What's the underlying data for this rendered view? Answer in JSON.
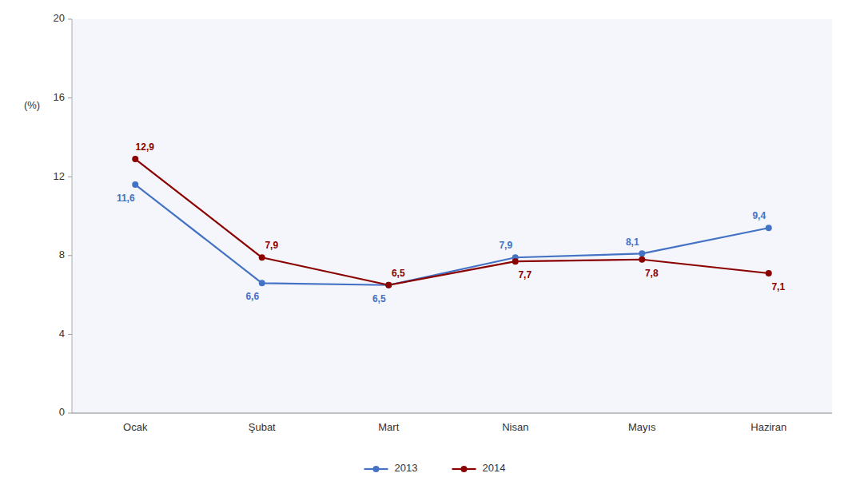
{
  "chart_data": {
    "type": "line",
    "y_label": "(%)",
    "categories": [
      "Ocak",
      "Şubat",
      "Mart",
      "Nisan",
      "Mayıs",
      "Haziran"
    ],
    "series": [
      {
        "name": "2013",
        "color": "#4472C4",
        "values": [
          11.6,
          6.6,
          6.5,
          7.9,
          8.1,
          9.4
        ],
        "value_labels": [
          "11,6",
          "6,6",
          "6,5",
          "7,9",
          "8,1",
          "9,4"
        ]
      },
      {
        "name": "2014",
        "color": "#8B0000",
        "values": [
          12.9,
          7.9,
          6.5,
          7.7,
          7.8,
          7.1
        ],
        "value_labels": [
          "12,9",
          "7,9",
          "6,5",
          "7,7",
          "7,8",
          "7,1"
        ]
      }
    ],
    "ylim": [
      0,
      20
    ],
    "yticks": [
      0,
      4,
      8,
      12,
      16,
      20
    ],
    "grid": false,
    "legend": "bottom",
    "data_labels": true,
    "marker": "circle"
  }
}
